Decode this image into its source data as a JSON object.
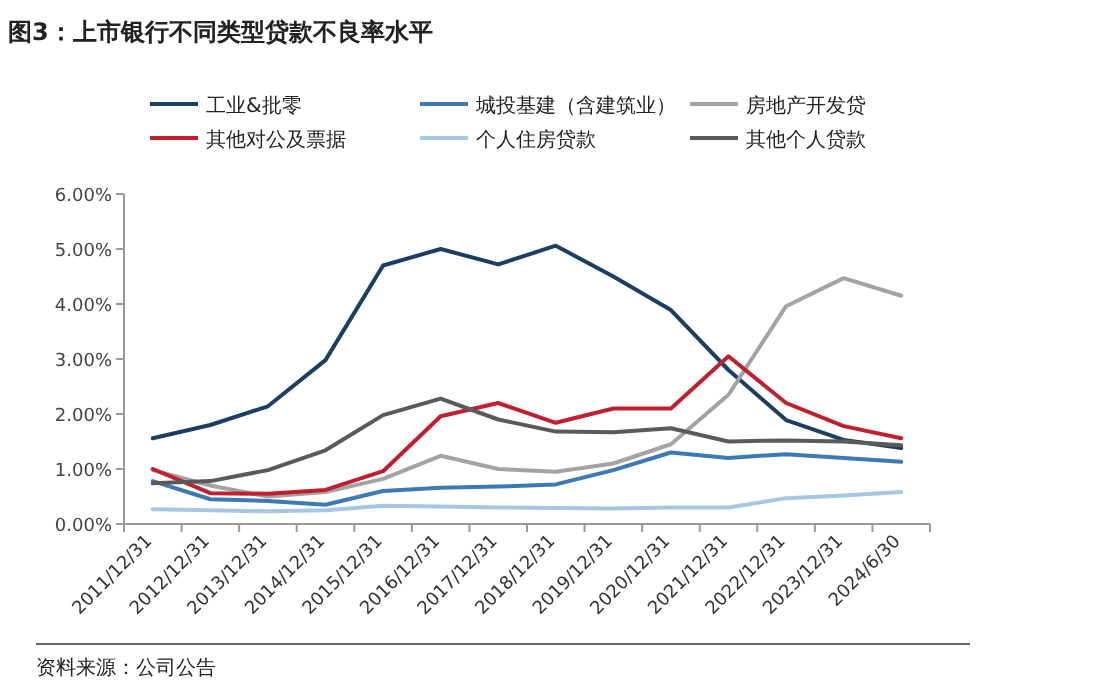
{
  "chart_data": {
    "type": "line",
    "title": "图3：上市银行不同类型贷款不良率水平",
    "annotations": [
      "资料来源：公司公告"
    ],
    "categories": [
      "2011/12/31",
      "2012/12/31",
      "2013/12/31",
      "2014/12/31",
      "2015/12/31",
      "2016/12/31",
      "2017/12/31",
      "2018/12/31",
      "2019/12/31",
      "2020/12/31",
      "2021/12/31",
      "2022/12/31",
      "2023/12/31",
      "2024/6/30"
    ],
    "series": [
      {
        "name": "工业&批零",
        "color": "#1b3f63",
        "values": [
          1.56,
          1.8,
          2.14,
          2.98,
          4.7,
          5.0,
          4.72,
          5.06,
          4.5,
          3.89,
          2.8,
          1.89,
          1.53,
          1.38
        ]
      },
      {
        "name": "城投基建（含建筑业）",
        "color": "#3d7ab5",
        "values": [
          0.78,
          0.45,
          0.42,
          0.35,
          0.6,
          0.66,
          0.68,
          0.72,
          0.98,
          1.3,
          1.2,
          1.27,
          1.2,
          1.13
        ]
      },
      {
        "name": "房地产开发贷",
        "color": "#a3a3a3",
        "values": [
          0.98,
          0.7,
          0.5,
          0.58,
          0.82,
          1.24,
          1.0,
          0.95,
          1.1,
          1.45,
          2.35,
          3.96,
          4.47,
          4.15
        ]
      },
      {
        "name": "其他对公及票据",
        "color": "#c0202e",
        "values": [
          1.0,
          0.56,
          0.55,
          0.62,
          0.96,
          1.96,
          2.2,
          1.84,
          2.1,
          2.1,
          3.05,
          2.2,
          1.78,
          1.56
        ]
      },
      {
        "name": "个人住房贷款",
        "color": "#a6c6e4",
        "values": [
          0.27,
          0.25,
          0.23,
          0.25,
          0.33,
          0.32,
          0.3,
          0.29,
          0.28,
          0.3,
          0.3,
          0.47,
          0.52,
          0.58
        ]
      },
      {
        "name": "其他个人贷款",
        "color": "#5a5a5a",
        "values": [
          0.74,
          0.78,
          0.98,
          1.34,
          1.98,
          2.28,
          1.9,
          1.68,
          1.67,
          1.74,
          1.5,
          1.52,
          1.5,
          1.43
        ]
      }
    ],
    "ylim": [
      0,
      6
    ],
    "yticks": [
      {
        "value": 0,
        "label": "0.00%"
      },
      {
        "value": 1,
        "label": "1.00%"
      },
      {
        "value": 2,
        "label": "2.00%"
      },
      {
        "value": 3,
        "label": "3.00%"
      },
      {
        "value": 4,
        "label": "4.00%"
      },
      {
        "value": 5,
        "label": "5.00%"
      },
      {
        "value": 6,
        "label": "6.00%"
      }
    ],
    "legend": "top"
  }
}
